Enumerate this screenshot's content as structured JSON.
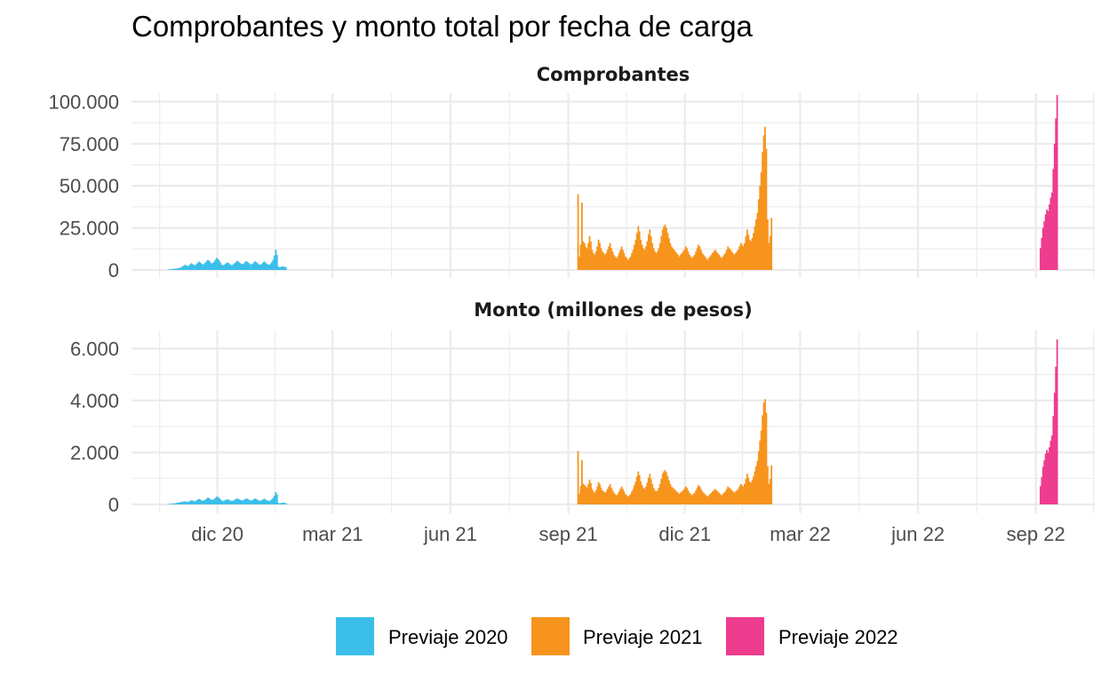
{
  "colors": {
    "previaje_2020": "#3BBFEA",
    "previaje_2021": "#F7941D",
    "previaje_2022": "#EE3C8E"
  },
  "chart_data": {
    "type": "bar",
    "title": "Comprobantes y monto total por fecha de carga",
    "x_ticks": [
      "dic 20",
      "mar 21",
      "jun 21",
      "sep 21",
      "dic 21",
      "mar 22",
      "jun 22",
      "sep 22"
    ],
    "x_tick_dates": [
      "2020-12-01",
      "2021-03-01",
      "2021-06-01",
      "2021-09-01",
      "2021-12-01",
      "2022-03-01",
      "2022-06-01",
      "2022-09-01"
    ],
    "x_range": [
      "2020-09-25",
      "2022-10-17"
    ],
    "legend": {
      "position": "bottom",
      "entries": [
        {
          "name": "Previaje 2020",
          "color": "#3BBFEA"
        },
        {
          "name": "Previaje 2021",
          "color": "#F7941D"
        },
        {
          "name": "Previaje 2022",
          "color": "#EE3C8E"
        }
      ]
    },
    "panels": [
      {
        "strip": "Comprobantes",
        "ylim": [
          0,
          105000
        ],
        "y_ticks": [
          0,
          25000,
          50000,
          75000,
          100000
        ],
        "y_tick_labels": [
          "0",
          "25.000",
          "50.000",
          "75.000",
          "100.000"
        ],
        "series": [
          {
            "name": "Previaje 2020",
            "start": "2020-10-23",
            "values": [
              200,
              300,
              400,
              500,
              600,
              700,
              800,
              900,
              1000,
              1200,
              1500,
              2000,
              2500,
              3000,
              2800,
              2200,
              2600,
              3200,
              4000,
              3500,
              3000,
              2800,
              3500,
              4200,
              5000,
              4500,
              3800,
              3200,
              3600,
              4300,
              5200,
              6000,
              5500,
              4500,
              3800,
              4200,
              5000,
              6200,
              7200,
              6500,
              5500,
              4200,
              3000,
              2800,
              3200,
              3800,
              4500,
              4200,
              3600,
              3000,
              2900,
              3400,
              4000,
              4800,
              5400,
              5000,
              4200,
              3600,
              3400,
              3800,
              4600,
              5300,
              4800,
              4100,
              3500,
              3300,
              3700,
              4500,
              5200,
              4600,
              3900,
              3300,
              3100,
              3500,
              4300,
              5100,
              4400,
              3700,
              3200,
              3000,
              3600,
              4800,
              6200,
              8500,
              12000,
              9000,
              2000,
              1500,
              1800,
              2000,
              2200,
              1800,
              1500
            ]
          },
          {
            "name": "Previaje 2021",
            "start": "2021-09-08",
            "values": [
              45000,
              8000,
              15000,
              40000,
              17000,
              16000,
              14000,
              13000,
              16000,
              20000,
              17000,
              12000,
              10000,
              9000,
              11000,
              14000,
              18000,
              16000,
              13000,
              11000,
              10000,
              9000,
              10000,
              12000,
              14000,
              16000,
              13000,
              11000,
              9000,
              8000,
              7000,
              8000,
              10000,
              12000,
              14000,
              12000,
              10000,
              8000,
              7000,
              6000,
              7000,
              8000,
              10000,
              12000,
              15000,
              18000,
              22000,
              26000,
              23000,
              18000,
              15000,
              13000,
              12000,
              14000,
              17000,
              21000,
              24000,
              20000,
              16000,
              13000,
              11000,
              10000,
              11000,
              13000,
              16000,
              20000,
              24000,
              26000,
              27000,
              25000,
              22000,
              19000,
              16000,
              14000,
              13000,
              12000,
              11000,
              10000,
              9000,
              8000,
              9000,
              10000,
              11000,
              12000,
              14000,
              13000,
              11000,
              9000,
              8000,
              7000,
              8000,
              9000,
              11000,
              13000,
              15000,
              14000,
              12000,
              10000,
              9000,
              8000,
              7000,
              6000,
              7000,
              8000,
              9000,
              10000,
              11000,
              12000,
              11000,
              10000,
              9000,
              8000,
              7000,
              8000,
              9000,
              10000,
              12000,
              14000,
              13000,
              12000,
              11000,
              10000,
              9000,
              10000,
              11000,
              12000,
              14000,
              16000,
              15000,
              14000,
              16000,
              20000,
              24000,
              21000,
              18000,
              17000,
              19000,
              22000,
              26000,
              30000,
              34000,
              42000,
              50000,
              58000,
              70000,
              80000,
              85000,
              72000,
              30000,
              16000,
              20000,
              31000
            ]
          },
          {
            "name": "Previaje 2022",
            "start": "2022-09-04",
            "values": [
              13000,
              19000,
              25000,
              29000,
              33000,
              36000,
              35000,
              39000,
              43000,
              46000,
              60000,
              75000,
              90000,
              104000
            ]
          }
        ]
      },
      {
        "strip": "Monto (millones de pesos)",
        "ylim": [
          0,
          6700
        ],
        "y_ticks": [
          0,
          2000,
          4000,
          6000
        ],
        "y_tick_labels": [
          "0",
          "2.000",
          "4.000",
          "6.000"
        ],
        "series": [
          {
            "name": "Previaje 2020",
            "start": "2020-10-23",
            "values": [
              10,
              15,
              20,
              25,
              30,
              40,
              50,
              60,
              70,
              80,
              90,
              100,
              110,
              120,
              110,
              90,
              100,
              130,
              160,
              150,
              130,
              120,
              150,
              180,
              210,
              190,
              160,
              140,
              150,
              180,
              220,
              260,
              240,
              200,
              170,
              180,
              210,
              260,
              300,
              280,
              240,
              190,
              140,
              130,
              150,
              170,
              200,
              190,
              160,
              140,
              130,
              150,
              180,
              210,
              230,
              210,
              180,
              160,
              150,
              170,
              200,
              230,
              210,
              180,
              160,
              150,
              170,
              200,
              230,
              200,
              170,
              150,
              140,
              160,
              190,
              220,
              190,
              160,
              140,
              130,
              160,
              200,
              260,
              340,
              480,
              380,
              60,
              40,
              50,
              60,
              70,
              55,
              40
            ]
          },
          {
            "name": "Previaje 2021",
            "start": "2021-09-08",
            "values": [
              2050,
              400,
              700,
              1700,
              800,
              750,
              700,
              650,
              780,
              950,
              820,
              600,
              500,
              450,
              540,
              680,
              860,
              780,
              640,
              540,
              500,
              450,
              500,
              600,
              690,
              780,
              640,
              540,
              450,
              400,
              350,
              400,
              500,
              600,
              690,
              600,
              500,
              400,
              350,
              300,
              350,
              400,
              500,
              600,
              740,
              880,
              1080,
              1270,
              1130,
              880,
              740,
              640,
              600,
              690,
              840,
              1030,
              1180,
              980,
              790,
              640,
              540,
              500,
              540,
              640,
              790,
              980,
              1180,
              1270,
              1320,
              1230,
              1080,
              930,
              790,
              690,
              640,
              600,
              540,
              500,
              450,
              400,
              450,
              500,
              540,
              600,
              690,
              640,
              540,
              450,
              400,
              350,
              400,
              450,
              540,
              640,
              740,
              690,
              600,
              500,
              450,
              400,
              350,
              300,
              350,
              400,
              450,
              500,
              540,
              600,
              540,
              500,
              450,
              400,
              350,
              400,
              450,
              500,
              600,
              690,
              640,
              600,
              540,
              500,
              450,
              500,
              540,
              600,
              690,
              790,
              740,
              690,
              790,
              980,
              1180,
              1030,
              880,
              840,
              930,
              1080,
              1270,
              1470,
              1670,
              2050,
              2450,
              2840,
              3430,
              3920,
              4050,
              3530,
              1470,
              790,
              980,
              1500
            ]
          },
          {
            "name": "Previaje 2022",
            "start": "2022-09-04",
            "values": [
              700,
              1050,
              1450,
              1700,
              1950,
              2100,
              2000,
              2200,
              2450,
              2650,
              3400,
              4300,
              5300,
              6350
            ]
          }
        ]
      }
    ]
  }
}
